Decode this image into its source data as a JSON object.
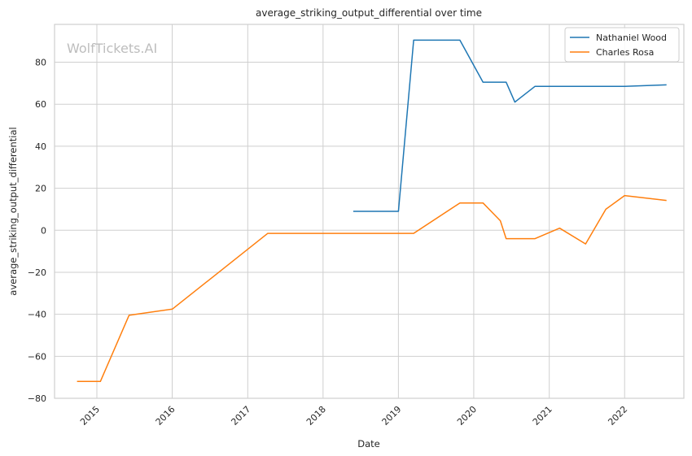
{
  "chart_data": {
    "type": "line",
    "title": "average_striking_output_differential over time",
    "xlabel": "Date",
    "ylabel": "average_striking_output_differential",
    "x_type": "date",
    "xlim": [
      "2014-06-10",
      "2022-10-15"
    ],
    "ylim": [
      -80,
      98
    ],
    "x_ticks": [
      "2015",
      "2016",
      "2017",
      "2018",
      "2019",
      "2020",
      "2021",
      "2022"
    ],
    "x_tick_dates": [
      "2015-01-01",
      "2016-01-01",
      "2017-01-01",
      "2018-01-01",
      "2019-01-01",
      "2020-01-01",
      "2021-01-01",
      "2022-01-01"
    ],
    "y_ticks": [
      -80,
      -60,
      -40,
      -20,
      0,
      20,
      40,
      60,
      80
    ],
    "y_tick_labels": [
      "−80",
      "−60",
      "−40",
      "−20",
      "0",
      "20",
      "40",
      "60",
      "80"
    ],
    "grid": true,
    "legend_position": "top-right",
    "watermark": "WolfTickets.AI",
    "series": [
      {
        "name": "Nathaniel Wood",
        "color": "#1f77b4",
        "points": [
          {
            "x": "2018-05-27",
            "y": 9
          },
          {
            "x": "2019-01-01",
            "y": 9
          },
          {
            "x": "2019-03-16",
            "y": 90.5
          },
          {
            "x": "2019-10-26",
            "y": 90.5
          },
          {
            "x": "2020-02-15",
            "y": 70.5
          },
          {
            "x": "2020-06-06",
            "y": 70.5
          },
          {
            "x": "2020-07-18",
            "y": 61
          },
          {
            "x": "2020-10-24",
            "y": 68.5
          },
          {
            "x": "2022-01-01",
            "y": 68.5
          },
          {
            "x": "2022-07-23",
            "y": 69.2
          }
        ]
      },
      {
        "name": "Charles Rosa",
        "color": "#ff7f0e",
        "points": [
          {
            "x": "2014-09-27",
            "y": -72
          },
          {
            "x": "2015-01-18",
            "y": -72
          },
          {
            "x": "2015-06-06",
            "y": -40.5
          },
          {
            "x": "2016-01-02",
            "y": -37.5
          },
          {
            "x": "2017-04-08",
            "y": -1.5
          },
          {
            "x": "2019-03-16",
            "y": -1.5
          },
          {
            "x": "2019-10-26",
            "y": 13
          },
          {
            "x": "2020-02-15",
            "y": 13
          },
          {
            "x": "2020-05-09",
            "y": 4.5
          },
          {
            "x": "2020-06-06",
            "y": -4
          },
          {
            "x": "2020-10-24",
            "y": -4
          },
          {
            "x": "2021-02-20",
            "y": 1
          },
          {
            "x": "2021-06-26",
            "y": -6.5
          },
          {
            "x": "2021-10-02",
            "y": 10
          },
          {
            "x": "2022-01-01",
            "y": 16.5
          },
          {
            "x": "2022-07-23",
            "y": 14.2
          }
        ]
      }
    ]
  }
}
